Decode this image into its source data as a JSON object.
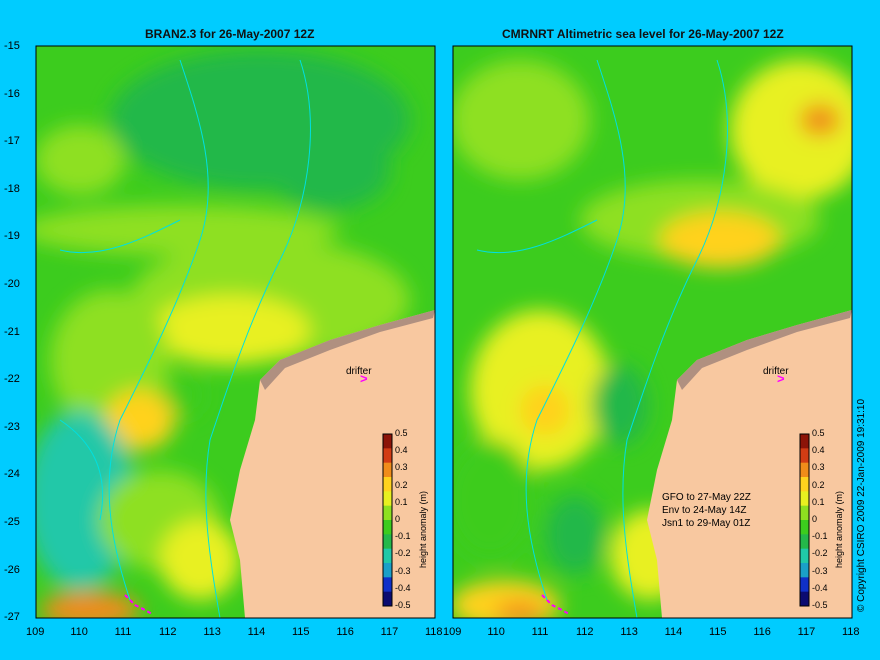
{
  "map_left": {
    "title": "BRAN2.3 for 26-May-2007 12Z",
    "drifter_label": "drifter"
  },
  "map_right": {
    "title": "CMRNRT Altimetric sea level  for 26-May-2007 12Z",
    "drifter_label": "drifter",
    "notes": [
      "GFO to 27-May 22Z",
      "Env to 24-May 14Z",
      "Jsn1 to 29-May 01Z"
    ]
  },
  "axes": {
    "lat_ticks": [
      "-15",
      "-16",
      "-17",
      "-18",
      "-19",
      "-20",
      "-21",
      "-22",
      "-23",
      "-24",
      "-25",
      "-26",
      "-27"
    ],
    "lon_ticks": [
      "109",
      "110",
      "111",
      "112",
      "113",
      "114",
      "115",
      "116",
      "117",
      "118"
    ]
  },
  "colorbar": {
    "label": "height anomaly (m)",
    "ticks": [
      "0.5",
      "0.4",
      "0.3",
      "0.2",
      "0.1",
      "0",
      "-0.1",
      "-0.2",
      "-0.3",
      "-0.4",
      "-0.5"
    ],
    "colors": [
      "#0b0b70",
      "#1030c8",
      "#1aa0c8",
      "#20c8a8",
      "#24b84a",
      "#3ccc1e",
      "#8ee020",
      "#e8f020",
      "#ffd21e",
      "#f08c1a",
      "#d23c14",
      "#8c1408"
    ]
  },
  "copyright": "© Copyright CSIRO 2009   22-Jan-2009 19:31:10",
  "colors": {
    "background": "#00ccff",
    "land": "#f8c8a0",
    "coast_dark": "#b09080",
    "drifter": "#ff00ff"
  }
}
